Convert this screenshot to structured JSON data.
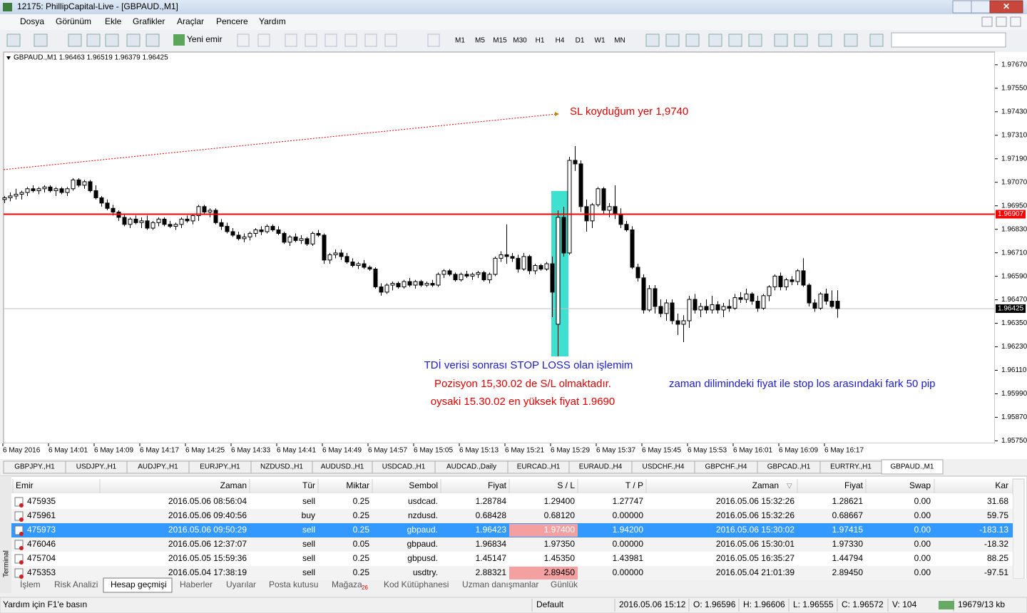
{
  "window": {
    "title": "12175: PhillipCapital-Live - [GBPAUD.,M1]"
  },
  "menu": [
    "Dosya",
    "Görünüm",
    "Ekle",
    "Grafikler",
    "Araçlar",
    "Pencere",
    "Yardım"
  ],
  "toolbar": {
    "new_order": "Yeni emir",
    "timeframes": [
      "M1",
      "M5",
      "M15",
      "M30",
      "H1",
      "H4",
      "D1",
      "W1",
      "MN"
    ]
  },
  "chart_data": {
    "type": "candlestick",
    "header": "GBPAUD.,M1  1.96463 1.96519 1.96379 1.96425",
    "ylim": [
      1.95737,
      1.97735
    ],
    "yticks": [
      {
        "value": 1.9767,
        "label": "1.97670"
      },
      {
        "value": 1.9755,
        "label": "1.97550"
      },
      {
        "value": 1.9743,
        "label": "1.97430"
      },
      {
        "value": 1.9731,
        "label": "1.97310"
      },
      {
        "value": 1.9719,
        "label": "1.97190"
      },
      {
        "value": 1.9707,
        "label": "1.97070"
      },
      {
        "value": 1.9695,
        "label": "1.96950"
      },
      {
        "value": 1.9683,
        "label": "1.96830"
      },
      {
        "value": 1.9671,
        "label": "1.96710"
      },
      {
        "value": 1.9659,
        "label": "1.96590"
      },
      {
        "value": 1.9647,
        "label": "1.96470"
      },
      {
        "value": 1.9635,
        "label": "1.96350"
      },
      {
        "value": 1.9623,
        "label": "1.96230"
      },
      {
        "value": 1.9611,
        "label": "1.96110"
      },
      {
        "value": 1.9599,
        "label": "1.95990"
      },
      {
        "value": 1.9587,
        "label": "1.95870"
      },
      {
        "value": 1.9575,
        "label": "1.95750"
      }
    ],
    "xticks": [
      {
        "value": 0,
        "label": "6 May 2016"
      },
      {
        "value": 8,
        "label": "6 May 14:01"
      },
      {
        "value": 16,
        "label": "6 May 14:09"
      },
      {
        "value": 24,
        "label": "6 May 14:17"
      },
      {
        "value": 32,
        "label": "6 May 14:25"
      },
      {
        "value": 40,
        "label": "6 May 14:33"
      },
      {
        "value": 48,
        "label": "6 May 14:41"
      },
      {
        "value": 56,
        "label": "6 May 14:49"
      },
      {
        "value": 64,
        "label": "6 May 14:57"
      },
      {
        "value": 72,
        "label": "6 May 15:05"
      },
      {
        "value": 80,
        "label": "6 May 15:13"
      },
      {
        "value": 88,
        "label": "6 May 15:21"
      },
      {
        "value": 96,
        "label": "6 May 15:29"
      },
      {
        "value": 104,
        "label": "6 May 15:37"
      },
      {
        "value": 112,
        "label": "6 May 15:45"
      },
      {
        "value": 120,
        "label": "6 May 15:53"
      },
      {
        "value": 128,
        "label": "6 May 16:01"
      },
      {
        "value": 136,
        "label": "6 May 16:09"
      },
      {
        "value": 144,
        "label": "6 May 16:17"
      }
    ],
    "hline": {
      "value": 1.96907,
      "color": "#ff0000"
    },
    "current_price": 1.96425,
    "annotations": [
      {
        "text": "SL koyduğum yer 1,9740",
        "color": "#e00000"
      },
      {
        "text": "TDİ verisi sonrası STOP LOSS olan işlemim",
        "color": "#1a1adb"
      },
      {
        "text": "Pozisyon 15,30.02 de S/L olmaktadır.",
        "color": "#e00000"
      },
      {
        "text": "oysaki 15.30.02 en yüksek fiyat 1.9690",
        "color": "#e00000"
      },
      {
        "text": "zaman dilimindeki fiyat ile stop los arasındaki fark 50 pip",
        "color": "#1a1adb"
      }
    ],
    "ohlc": [
      [
        1.96982,
        1.97,
        1.96964,
        1.96991
      ],
      [
        1.96991,
        1.97018,
        1.96973,
        1.97
      ],
      [
        1.97,
        1.97037,
        1.96982,
        1.97009
      ],
      [
        1.97009,
        1.97027,
        1.96982,
        1.97018
      ],
      [
        1.97018,
        1.97046,
        1.97,
        1.97037
      ],
      [
        1.97037,
        1.97055,
        1.97018,
        1.97027
      ],
      [
        1.97027,
        1.97046,
        1.97009,
        1.97037
      ],
      [
        1.97037,
        1.97055,
        1.97018,
        1.97046
      ],
      [
        1.97046,
        1.97055,
        1.97018,
        1.97027
      ],
      [
        1.97027,
        1.97046,
        1.97,
        1.97037
      ],
      [
        1.97037,
        1.97046,
        1.97009,
        1.97018
      ],
      [
        1.97018,
        1.97046,
        1.97,
        1.97037
      ],
      [
        1.97037,
        1.97091,
        1.97027,
        1.97082
      ],
      [
        1.97082,
        1.97091,
        1.97046,
        1.97055
      ],
      [
        1.97055,
        1.97082,
        1.97037,
        1.97073
      ],
      [
        1.97073,
        1.97082,
        1.97018,
        1.97027
      ],
      [
        1.97027,
        1.97055,
        1.96982,
        1.96991
      ],
      [
        1.96991,
        1.97,
        1.96946,
        1.96964
      ],
      [
        1.96964,
        1.96982,
        1.96927,
        1.96937
      ],
      [
        1.96937,
        1.96955,
        1.969,
        1.96918
      ],
      [
        1.96918,
        1.96927,
        1.96873,
        1.96891
      ],
      [
        1.96891,
        1.96909,
        1.96845,
        1.96855
      ],
      [
        1.96855,
        1.96891,
        1.96836,
        1.96882
      ],
      [
        1.96882,
        1.969,
        1.96855,
        1.96864
      ],
      [
        1.96864,
        1.96891,
        1.96836,
        1.96873
      ],
      [
        1.96873,
        1.969,
        1.96827,
        1.96836
      ],
      [
        1.96836,
        1.96873,
        1.96827,
        1.96864
      ],
      [
        1.96864,
        1.96891,
        1.96845,
        1.96882
      ],
      [
        1.96882,
        1.96891,
        1.96845,
        1.96855
      ],
      [
        1.96855,
        1.96873,
        1.96836,
        1.96845
      ],
      [
        1.96845,
        1.96864,
        1.96827,
        1.96855
      ],
      [
        1.96855,
        1.96891,
        1.96836,
        1.96882
      ],
      [
        1.96882,
        1.969,
        1.96864,
        1.96873
      ],
      [
        1.96873,
        1.96909,
        1.96855,
        1.969
      ],
      [
        1.969,
        1.96955,
        1.96873,
        1.96946
      ],
      [
        1.96946,
        1.96955,
        1.96909,
        1.96918
      ],
      [
        1.96918,
        1.96937,
        1.96891,
        1.96927
      ],
      [
        1.96927,
        1.96937,
        1.96855,
        1.96864
      ],
      [
        1.96864,
        1.96882,
        1.96827,
        1.96845
      ],
      [
        1.96845,
        1.96864,
        1.96809,
        1.96818
      ],
      [
        1.96818,
        1.96836,
        1.96791,
        1.968
      ],
      [
        1.968,
        1.96818,
        1.96773,
        1.96782
      ],
      [
        1.96782,
        1.96809,
        1.96764,
        1.96791
      ],
      [
        1.96791,
        1.96818,
        1.96773,
        1.96809
      ],
      [
        1.96809,
        1.96836,
        1.96791,
        1.96827
      ],
      [
        1.96827,
        1.96845,
        1.968,
        1.96818
      ],
      [
        1.96818,
        1.96855,
        1.96809,
        1.96845
      ],
      [
        1.96845,
        1.96855,
        1.96818,
        1.96827
      ],
      [
        1.96827,
        1.96845,
        1.968,
        1.96809
      ],
      [
        1.96809,
        1.96818,
        1.96755,
        1.96764
      ],
      [
        1.96764,
        1.968,
        1.96745,
        1.96791
      ],
      [
        1.96791,
        1.96809,
        1.96764,
        1.96773
      ],
      [
        1.96773,
        1.968,
        1.96755,
        1.96782
      ],
      [
        1.96782,
        1.96791,
        1.96745,
        1.96755
      ],
      [
        1.96755,
        1.96818,
        1.96745,
        1.96809
      ],
      [
        1.96809,
        1.96827,
        1.96791,
        1.968
      ],
      [
        1.968,
        1.96809,
        1.96654,
        1.96673
      ],
      [
        1.96673,
        1.96709,
        1.96654,
        1.967
      ],
      [
        1.967,
        1.96727,
        1.96682,
        1.96709
      ],
      [
        1.96709,
        1.96727,
        1.96673,
        1.96691
      ],
      [
        1.96691,
        1.96709,
        1.96654,
        1.96663
      ],
      [
        1.96663,
        1.96682,
        1.96636,
        1.96645
      ],
      [
        1.96645,
        1.96663,
        1.96627,
        1.96654
      ],
      [
        1.96654,
        1.96673,
        1.96627,
        1.96636
      ],
      [
        1.96636,
        1.96645,
        1.96618,
        1.96627
      ],
      [
        1.96627,
        1.96636,
        1.96527,
        1.96536
      ],
      [
        1.96536,
        1.96554,
        1.96491,
        1.96509
      ],
      [
        1.96509,
        1.96554,
        1.965,
        1.96545
      ],
      [
        1.96545,
        1.96563,
        1.96518,
        1.96554
      ],
      [
        1.96554,
        1.96563,
        1.96527,
        1.96536
      ],
      [
        1.96536,
        1.96572,
        1.96527,
        1.96563
      ],
      [
        1.96563,
        1.96582,
        1.96536,
        1.96545
      ],
      [
        1.96545,
        1.96572,
        1.96527,
        1.96563
      ],
      [
        1.96563,
        1.96572,
        1.96536,
        1.96545
      ],
      [
        1.96545,
        1.96563,
        1.96536,
        1.96554
      ],
      [
        1.96554,
        1.96572,
        1.96536,
        1.96545
      ],
      [
        1.96545,
        1.96609,
        1.96536,
        1.966
      ],
      [
        1.966,
        1.96627,
        1.96582,
        1.96618
      ],
      [
        1.96618,
        1.96627,
        1.96591,
        1.966
      ],
      [
        1.966,
        1.96609,
        1.96563,
        1.96572
      ],
      [
        1.96572,
        1.96609,
        1.96563,
        1.966
      ],
      [
        1.966,
        1.96618,
        1.96582,
        1.96591
      ],
      [
        1.96591,
        1.96609,
        1.96572,
        1.966
      ],
      [
        1.966,
        1.96618,
        1.96582,
        1.96609
      ],
      [
        1.96609,
        1.96618,
        1.96563,
        1.96572
      ],
      [
        1.96572,
        1.96609,
        1.96554,
        1.966
      ],
      [
        1.966,
        1.96691,
        1.96591,
        1.96682
      ],
      [
        1.96682,
        1.96718,
        1.96663,
        1.967
      ],
      [
        1.967,
        1.96855,
        1.96654,
        1.96691
      ],
      [
        1.96691,
        1.96709,
        1.96663,
        1.96682
      ],
      [
        1.96682,
        1.967,
        1.96609,
        1.96627
      ],
      [
        1.96627,
        1.96709,
        1.96618,
        1.96691
      ],
      [
        1.96691,
        1.967,
        1.966,
        1.96618
      ],
      [
        1.96618,
        1.96654,
        1.966,
        1.96645
      ],
      [
        1.96645,
        1.96654,
        1.96618,
        1.96627
      ],
      [
        1.96627,
        1.96663,
        1.96618,
        1.96654
      ],
      [
        1.96654,
        1.96691,
        1.96381,
        1.96509
      ],
      [
        1.96345,
        1.96927,
        1.96181,
        1.96891
      ],
      [
        1.96891,
        1.96945,
        1.96691,
        1.96709
      ],
      [
        1.96709,
        1.972,
        1.967,
        1.97182
      ],
      [
        1.97182,
        1.97255,
        1.97128,
        1.97164
      ],
      [
        1.97164,
        1.97182,
        1.96918,
        1.96946
      ],
      [
        1.96946,
        1.96982,
        1.96818,
        1.96873
      ],
      [
        1.96873,
        1.96964,
        1.96836,
        1.96955
      ],
      [
        1.96955,
        1.97046,
        1.96945,
        1.97037
      ],
      [
        1.97037,
        1.97046,
        1.96909,
        1.96927
      ],
      [
        1.96927,
        1.96964,
        1.96891,
        1.96946
      ],
      [
        1.96946,
        1.97055,
        1.96882,
        1.96909
      ],
      [
        1.96909,
        1.96937,
        1.96836,
        1.96855
      ],
      [
        1.96855,
        1.96873,
        1.96818,
        1.96827
      ],
      [
        1.96827,
        1.96845,
        1.96627,
        1.96636
      ],
      [
        1.96636,
        1.96654,
        1.96563,
        1.96582
      ],
      [
        1.96582,
        1.966,
        1.964,
        1.96418
      ],
      [
        1.96418,
        1.96545,
        1.96409,
        1.96527
      ],
      [
        1.96527,
        1.96545,
        1.964,
        1.96436
      ],
      [
        1.96436,
        1.96472,
        1.96381,
        1.964
      ],
      [
        1.964,
        1.96472,
        1.96363,
        1.96454
      ],
      [
        1.96454,
        1.96472,
        1.96345,
        1.96363
      ],
      [
        1.96363,
        1.964,
        1.9629,
        1.96345
      ],
      [
        1.96345,
        1.96391,
        1.96254,
        1.96363
      ],
      [
        1.96363,
        1.96491,
        1.96327,
        1.96472
      ],
      [
        1.96472,
        1.965,
        1.964,
        1.96418
      ],
      [
        1.96418,
        1.96454,
        1.96381,
        1.96436
      ],
      [
        1.96436,
        1.96472,
        1.964,
        1.96418
      ],
      [
        1.96418,
        1.96491,
        1.964,
        1.96445
      ],
      [
        1.96445,
        1.96463,
        1.964,
        1.96418
      ],
      [
        1.96418,
        1.96454,
        1.96381,
        1.96436
      ],
      [
        1.96436,
        1.96472,
        1.96409,
        1.96427
      ],
      [
        1.96427,
        1.965,
        1.96418,
        1.96481
      ],
      [
        1.96481,
        1.96509,
        1.96454,
        1.96472
      ],
      [
        1.96472,
        1.96527,
        1.96454,
        1.965
      ],
      [
        1.965,
        1.96509,
        1.96445,
        1.96463
      ],
      [
        1.96463,
        1.96491,
        1.96409,
        1.96427
      ],
      [
        1.96427,
        1.965,
        1.96418,
        1.96491
      ],
      [
        1.96491,
        1.96545,
        1.96463,
        1.96536
      ],
      [
        1.96536,
        1.966,
        1.96518,
        1.96591
      ],
      [
        1.96591,
        1.96609,
        1.96518,
        1.96536
      ],
      [
        1.96536,
        1.96582,
        1.96518,
        1.96572
      ],
      [
        1.96572,
        1.96591,
        1.96545,
        1.96563
      ],
      [
        1.96563,
        1.96627,
        1.96545,
        1.96618
      ],
      [
        1.96618,
        1.96682,
        1.96536,
        1.96545
      ],
      [
        1.96545,
        1.96554,
        1.96436,
        1.96454
      ],
      [
        1.96454,
        1.96472,
        1.96409,
        1.96427
      ],
      [
        1.96427,
        1.96509,
        1.96418,
        1.965
      ],
      [
        1.965,
        1.96527,
        1.96445,
        1.96463
      ],
      [
        1.96463,
        1.96518,
        1.96427,
        1.96436
      ],
      [
        1.96463,
        1.96519,
        1.96379,
        1.96425
      ]
    ]
  },
  "symbol_tabs": [
    "GBPJPY.,H1",
    "USDJPY.,H1",
    "AUDJPY.,H1",
    "EURJPY.,H1",
    "NZDUSD.,H1",
    "AUDUSD.,H1",
    "USDCAD.,H1",
    "AUDCAD.,Daily",
    "EURCAD.,H1",
    "EURAUD.,H4",
    "USDCHF.,H4",
    "GBPCHF.,H4",
    "GBPCAD.,H1",
    "EURTRY.,H1",
    "GBPAUD.,M1"
  ],
  "terminal": {
    "side_label": "Terminal",
    "columns": [
      "Emir",
      "Zaman",
      "Tür",
      "Miktar",
      "Sembol",
      "Fiyat",
      "S / L",
      "T / P",
      "Zaman",
      "Fiyat",
      "Swap",
      "Kar"
    ],
    "rows": [
      [
        "475935",
        "2016.05.06 08:56:04",
        "sell",
        "0.25",
        "usdcad.",
        "1.28784",
        "1.29400",
        "1.27747",
        "2016.05.06 15:32:26",
        "1.28621",
        "0.00",
        "31.68"
      ],
      [
        "475961",
        "2016.05.06 09:40:56",
        "buy",
        "0.25",
        "nzdusd.",
        "0.68428",
        "0.68120",
        "0.00000",
        "2016.05.06 15:32:26",
        "0.68667",
        "0.00",
        "59.75"
      ],
      [
        "475973",
        "2016.05.06 09:50:29",
        "sell",
        "0.25",
        "gbpaud.",
        "1.96423",
        "1.97400",
        "1.94200",
        "2016.05.06 15:30:02",
        "1.97415",
        "0.00",
        "-183.13"
      ],
      [
        "476046",
        "2016.05.06 12:37:07",
        "sell",
        "0.05",
        "gbpaud.",
        "1.96834",
        "1.97350",
        "0.00000",
        "2016.05.06 15:30:01",
        "1.97330",
        "0.00",
        "-18.32"
      ],
      [
        "475704",
        "2016.05.05 15:59:36",
        "sell",
        "0.25",
        "gbpusd.",
        "1.45147",
        "1.45350",
        "1.43981",
        "2016.05.05 16:35:27",
        "1.44794",
        "0.00",
        "88.25"
      ],
      [
        "475353",
        "2016.05.04 17:38:19",
        "sell",
        "0.25",
        "usdtry.",
        "2.88321",
        "2.89450",
        "0.00000",
        "2016.05.04 21:01:39",
        "2.89450",
        "0.00",
        "-97.51"
      ]
    ],
    "tabs": [
      "İşlem",
      "Risk Analizi",
      "Hesap geçmişi",
      "Haberler",
      "Uyarılar",
      "Posta kutusu",
      "Mağaza",
      "Kod Kütüphanesi",
      "Uzman danışmanlar",
      "Günlük"
    ],
    "store_badge": "26"
  },
  "status": [
    "Yardım için F1'e basın",
    "Default",
    "2016.05.06 15:12",
    "O: 1.96596",
    "H: 1.96606",
    "L: 1.96555",
    "C: 1.96572",
    "V: 104",
    "19679/13 kb"
  ]
}
